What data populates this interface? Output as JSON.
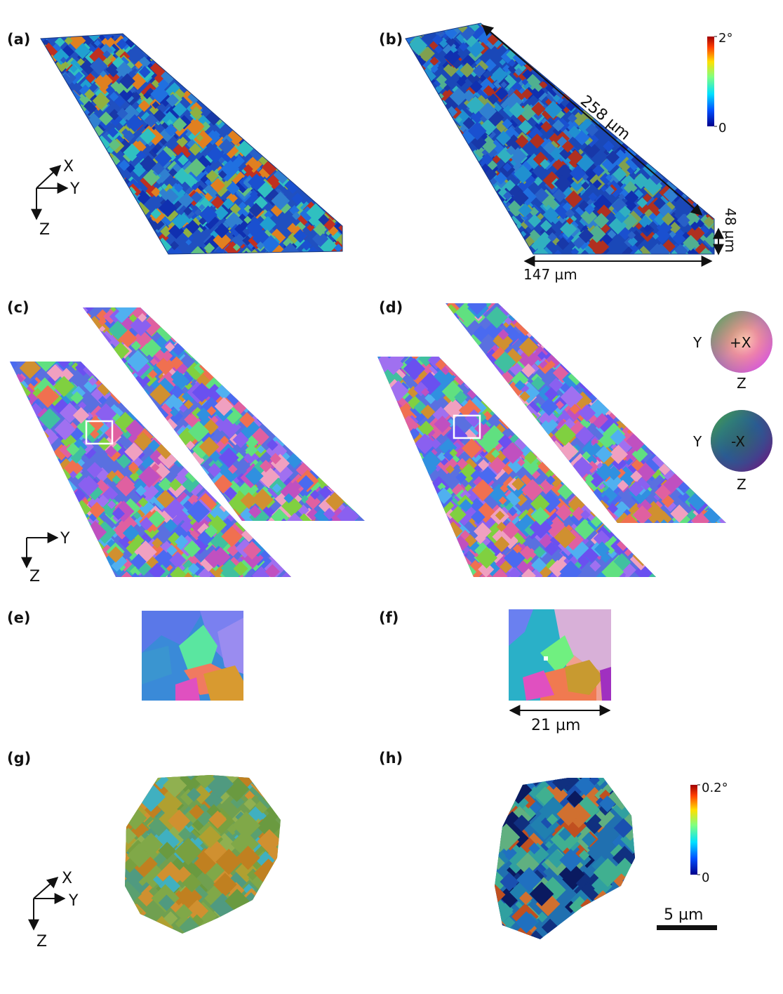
{
  "panels": {
    "a": "(a)",
    "b": "(b)",
    "c": "(c)",
    "d": "(d)",
    "e": "(e)",
    "f": "(f)",
    "g": "(g)",
    "h": "(h)"
  },
  "axes": {
    "xyz_a": {
      "x": "X",
      "y": "Y",
      "z": "Z"
    },
    "yz_c": {
      "y": "Y",
      "z": "Z"
    },
    "xyz_g": {
      "x": "X",
      "y": "Y",
      "z": "Z"
    }
  },
  "colorbar_top": {
    "max": "2°",
    "min": "0",
    "colors": [
      "#00008b",
      "#0050ff",
      "#00e0ff",
      "#80ff80",
      "#ffe000",
      "#ff4000",
      "#a00000"
    ]
  },
  "colorbar_bottom": {
    "max": "0.2°",
    "min": "0",
    "colors": [
      "#00008b",
      "#0050ff",
      "#00e0ff",
      "#80ff80",
      "#ffe000",
      "#ff4000",
      "#a00000"
    ]
  },
  "dimensions": {
    "length_diag": "258 µm",
    "thickness": "48 µm",
    "width": "147 µm",
    "inset_width": "21 µm",
    "scale_bar": "5 µm"
  },
  "ipf_key": {
    "plus": {
      "center": "+X",
      "left": "Y",
      "bottom": "Z"
    },
    "minus": {
      "center": "-X",
      "left": "Y",
      "bottom": "Z"
    }
  }
}
